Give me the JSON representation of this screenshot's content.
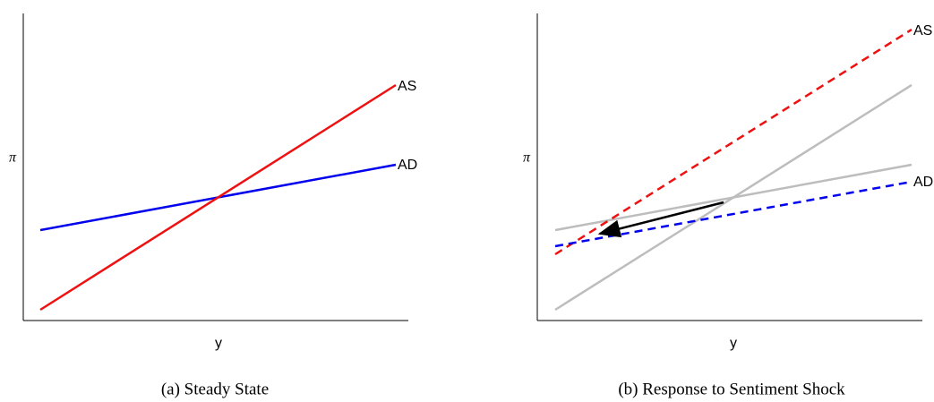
{
  "panels": [
    {
      "caption": "(a) Steady State",
      "x_label": "y",
      "y_label": "π",
      "as_label": "AS",
      "ad_label": "AD"
    },
    {
      "caption": "(b) Response to Sentiment Shock",
      "x_label": "y",
      "y_label": "π",
      "as_label": "AS",
      "ad_label": "AD"
    }
  ]
}
